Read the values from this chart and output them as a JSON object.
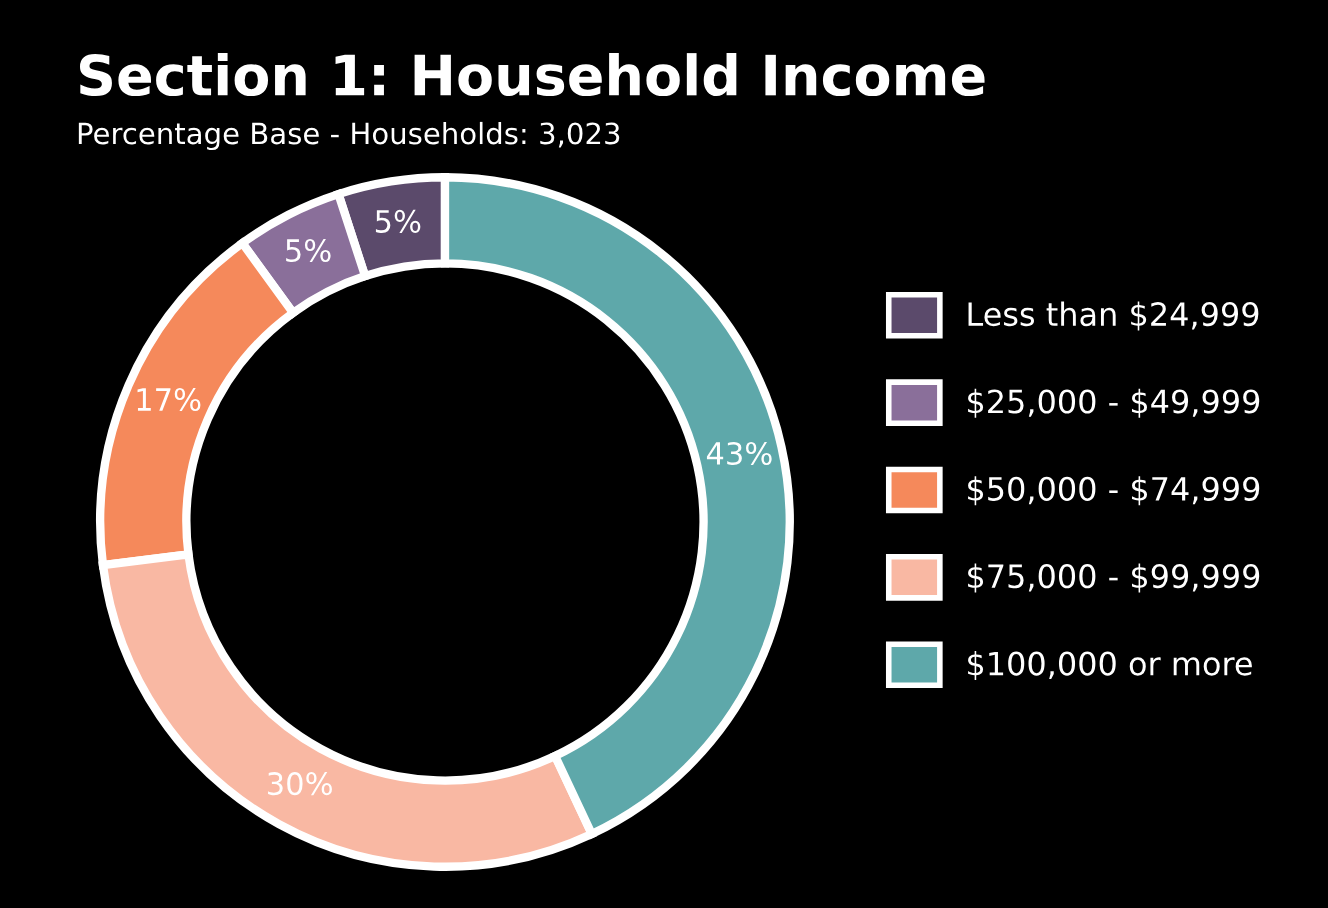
{
  "chart_data": {
    "type": "donut",
    "title": "Section 1: Household Income",
    "subtitle": "Percentage Base - Households: 3,023",
    "categories": [
      "Less than $24,999",
      "$25,000 - $49,999",
      "$50,000 - $74,999",
      "$75,000 - $99,999",
      "$100,000 or more"
    ],
    "values": [
      5,
      5,
      17,
      30,
      43
    ],
    "colors": [
      "#5b4a6b",
      "#8a6f9a",
      "#f5895b",
      "#f9b8a3",
      "#5ea8aa"
    ],
    "value_labels": [
      "5%",
      "5%",
      "17%",
      "30%",
      "43%"
    ],
    "legend": "right"
  }
}
